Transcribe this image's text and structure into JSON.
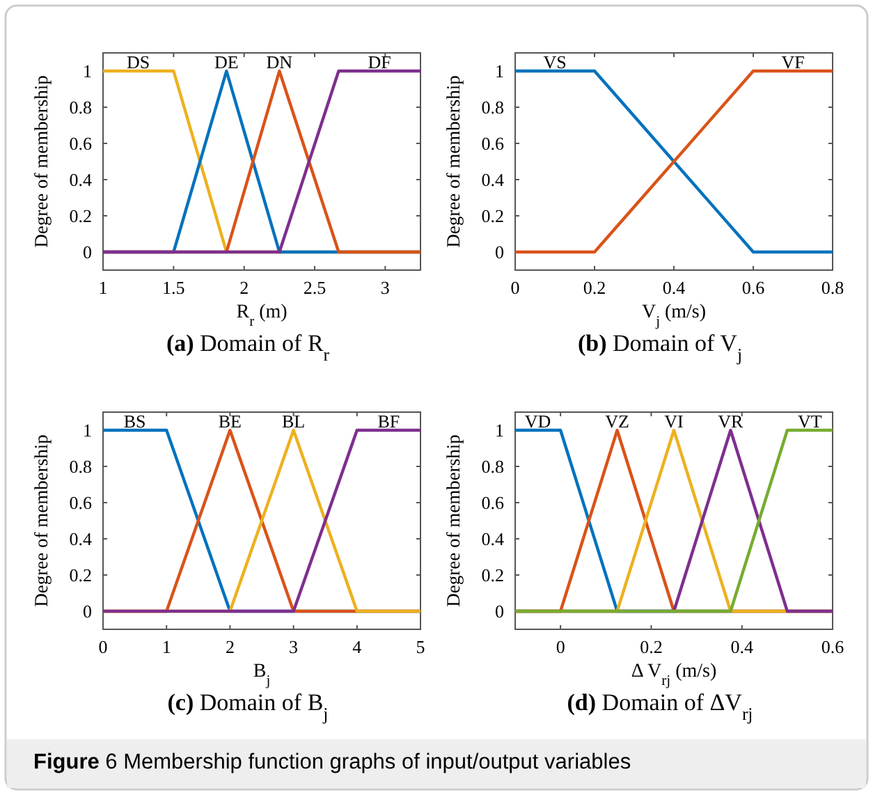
{
  "chart_data": [
    {
      "type": "line",
      "title": "(a) Domain of R$_{r}$",
      "xlabel": "R$_{r}$ (m)",
      "ylabel": "Degree of membership",
      "xlim": [
        1,
        3.25
      ],
      "xticks": [
        1,
        1.5,
        2,
        2.5,
        3
      ],
      "ylim": [
        -0.1,
        1.1
      ],
      "yticks": [
        0,
        0.2,
        0.4,
        0.6,
        0.8,
        1
      ],
      "grid": false,
      "marker": "none",
      "line_style": "solid",
      "series": [
        {
          "name": "DS",
          "color": "#edb120",
          "x": [
            1,
            1.5,
            1.875,
            3.25
          ],
          "values": [
            1,
            1,
            0,
            0
          ]
        },
        {
          "name": "DE",
          "color": "#0072bd",
          "x": [
            1,
            1.5,
            1.875,
            2.25,
            3.25
          ],
          "values": [
            0,
            0,
            1,
            0,
            0
          ]
        },
        {
          "name": "DN",
          "color": "#d95319",
          "x": [
            1,
            1.875,
            2.25,
            2.67,
            3.25
          ],
          "values": [
            0,
            0,
            1,
            0,
            0
          ]
        },
        {
          "name": "DF",
          "color": "#7e2f8e",
          "x": [
            1,
            2.25,
            2.67,
            3.25
          ],
          "values": [
            0,
            0,
            1,
            1
          ]
        }
      ]
    },
    {
      "type": "line",
      "title": "(b) Domain of V$_{j}$",
      "xlabel": "V$_{j}$ (m/s)",
      "ylabel": "Degree of membership",
      "xlim": [
        0,
        0.8
      ],
      "xticks": [
        0,
        0.2,
        0.4,
        0.6,
        0.8
      ],
      "ylim": [
        -0.1,
        1.1
      ],
      "yticks": [
        0,
        0.2,
        0.4,
        0.6,
        0.8,
        1
      ],
      "grid": false,
      "marker": "none",
      "line_style": "solid",
      "series": [
        {
          "name": "VS",
          "color": "#0072bd",
          "x": [
            0,
            0.2,
            0.6,
            0.8
          ],
          "values": [
            1,
            1,
            0,
            0
          ]
        },
        {
          "name": "VF",
          "color": "#d95319",
          "x": [
            0,
            0.2,
            0.6,
            0.8
          ],
          "values": [
            0,
            0,
            1,
            1
          ]
        }
      ]
    },
    {
      "type": "line",
      "title": "(c) Domain of B$_{j}$",
      "xlabel": "B$_{j}$",
      "ylabel": "Degree of membership",
      "xlim": [
        0,
        5
      ],
      "xticks": [
        0,
        1,
        2,
        3,
        4,
        5
      ],
      "ylim": [
        -0.1,
        1.1
      ],
      "yticks": [
        0,
        0.2,
        0.4,
        0.6,
        0.8,
        1
      ],
      "grid": false,
      "marker": "none",
      "line_style": "solid",
      "series": [
        {
          "name": "BS",
          "color": "#0072bd",
          "x": [
            0,
            1,
            2,
            5
          ],
          "values": [
            1,
            1,
            0,
            0
          ]
        },
        {
          "name": "BE",
          "color": "#d95319",
          "x": [
            0,
            1,
            2,
            3,
            5
          ],
          "values": [
            0,
            0,
            1,
            0,
            0
          ]
        },
        {
          "name": "BL",
          "color": "#edb120",
          "x": [
            0,
            2,
            3,
            4,
            5
          ],
          "values": [
            0,
            0,
            1,
            0,
            0
          ]
        },
        {
          "name": "BF",
          "color": "#7e2f8e",
          "x": [
            0,
            3,
            4,
            5
          ],
          "values": [
            0,
            0,
            1,
            1
          ]
        }
      ]
    },
    {
      "type": "line",
      "title": "(d) Domain of ΔV$_{rj}$",
      "xlabel": "Δ V$_{rj}$ (m/s)",
      "ylabel": "Degree of membership",
      "xlim": [
        -0.1,
        0.6
      ],
      "xticks": [
        0,
        0.2,
        0.4,
        0.6
      ],
      "ylim": [
        -0.1,
        1.1
      ],
      "yticks": [
        0,
        0.2,
        0.4,
        0.6,
        0.8,
        1
      ],
      "grid": false,
      "marker": "none",
      "line_style": "solid",
      "annotations": [
        "Figure 6 Membership function graphs of input/output variables"
      ],
      "series": [
        {
          "name": "VD",
          "color": "#0072bd",
          "x": [
            -0.1,
            0,
            0.125,
            0.6
          ],
          "values": [
            1,
            1,
            0,
            0
          ]
        },
        {
          "name": "VZ",
          "color": "#d95319",
          "x": [
            -0.1,
            0,
            0.125,
            0.25,
            0.6
          ],
          "values": [
            0,
            0,
            1,
            0,
            0
          ]
        },
        {
          "name": "VI",
          "color": "#edb120",
          "x": [
            -0.1,
            0.125,
            0.25,
            0.375,
            0.6
          ],
          "values": [
            0,
            0,
            1,
            0,
            0
          ]
        },
        {
          "name": "VR",
          "color": "#7e2f8e",
          "x": [
            -0.1,
            0.25,
            0.375,
            0.5,
            0.6
          ],
          "values": [
            0,
            0,
            1,
            0,
            0
          ]
        },
        {
          "name": "VT",
          "color": "#77ac30",
          "x": [
            -0.1,
            0.375,
            0.5,
            0.6
          ],
          "values": [
            0,
            0,
            1,
            1
          ]
        }
      ]
    }
  ]
}
